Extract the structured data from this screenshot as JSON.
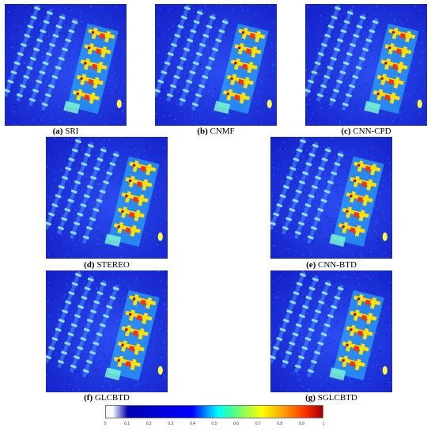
{
  "panels": [
    {
      "letter": "(a)",
      "name": "SRI"
    },
    {
      "letter": "(b)",
      "name": "CNMF"
    },
    {
      "letter": "(c)",
      "name": "CNN-CPD"
    },
    {
      "letter": "(d)",
      "name": "STEREO"
    },
    {
      "letter": "(e)",
      "name": "CNN-BTD"
    },
    {
      "letter": "(f)",
      "name": "GLCBTD"
    },
    {
      "letter": "(g)",
      "name": "SGLCBTD"
    }
  ],
  "colorbar": {
    "ticks": [
      "0",
      "0.1",
      "0.2",
      "0.3",
      "0.4",
      "0.5",
      "0.6",
      "0.7",
      "0.8",
      "0.9",
      "1"
    ],
    "colors": {
      "low": "#0000b0",
      "mid": "#00ffff",
      "high": "#a00000"
    }
  }
}
